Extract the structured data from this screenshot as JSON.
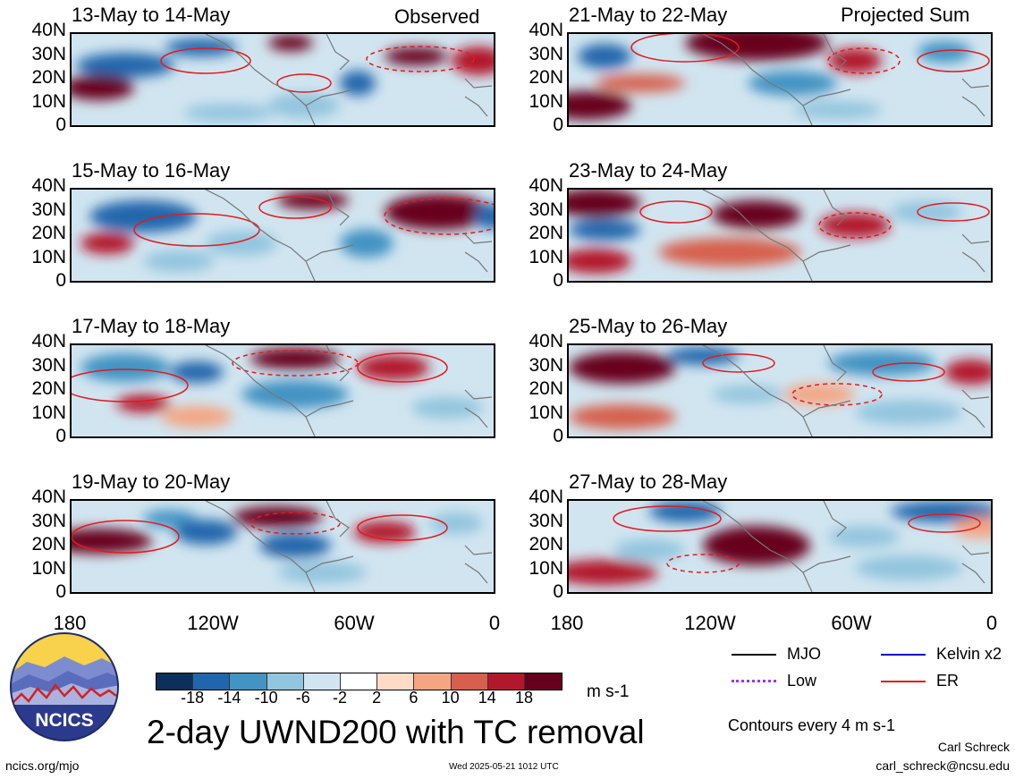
{
  "header": {
    "observed_label": "Observed",
    "projected_label": "Projected Sum"
  },
  "panels_observed": [
    {
      "title": "13-May to 14-May"
    },
    {
      "title": "15-May to 16-May"
    },
    {
      "title": "17-May to 18-May"
    },
    {
      "title": "19-May to 20-May"
    }
  ],
  "panels_projected": [
    {
      "title": "21-May to 22-May"
    },
    {
      "title": "23-May to 24-May"
    },
    {
      "title": "25-May to 26-May"
    },
    {
      "title": "27-May to 28-May"
    }
  ],
  "axes": {
    "lat_ticks": [
      "40N",
      "30N",
      "20N",
      "10N",
      "0"
    ],
    "lon_ticks": [
      "180",
      "120W",
      "60W",
      "0"
    ]
  },
  "colorbar": {
    "ticks": [
      "-18",
      "-14",
      "-10",
      "-6",
      "-2",
      "2",
      "6",
      "10",
      "14",
      "18"
    ],
    "unit": "m s-1",
    "colors": [
      "#0c2f5c",
      "#2166ac",
      "#4393c3",
      "#92c5de",
      "#d1e5f0",
      "#ffffff",
      "#fddbc7",
      "#f4a582",
      "#d6604d",
      "#b2182b",
      "#67001f"
    ]
  },
  "legend": {
    "mjo": "MJO",
    "kelvin": "Kelvin x2",
    "low": "Low",
    "er": "ER",
    "contours_note": "Contours every 4 m s-1",
    "colors": {
      "mjo": "#000000",
      "kelvin": "#0000cc",
      "low": "#9933ff",
      "er": "#e41a1c"
    }
  },
  "footer": {
    "main_title": "2-day UWND200 with TC removal",
    "url": "ncics.org/mjo",
    "timestamp": "Wed 2025-05-21 1012 UTC",
    "author": "Carl Schreck",
    "email": "carl_schreck@ncsu.edu",
    "logo_text": "NCICS"
  },
  "chart_data": [
    {
      "type": "heatmap",
      "title": "13-May to 14-May",
      "group": "Observed",
      "x_range": [
        "180",
        "0"
      ],
      "y_range": [
        "0",
        "40N"
      ],
      "colorbar_unit": "m s-1"
    },
    {
      "type": "heatmap",
      "title": "15-May to 16-May",
      "group": "Observed",
      "x_range": [
        "180",
        "0"
      ],
      "y_range": [
        "0",
        "40N"
      ],
      "colorbar_unit": "m s-1"
    },
    {
      "type": "heatmap",
      "title": "17-May to 18-May",
      "group": "Observed",
      "x_range": [
        "180",
        "0"
      ],
      "y_range": [
        "0",
        "40N"
      ],
      "colorbar_unit": "m s-1"
    },
    {
      "type": "heatmap",
      "title": "19-May to 20-May",
      "group": "Observed",
      "x_range": [
        "180",
        "0"
      ],
      "y_range": [
        "0",
        "40N"
      ],
      "colorbar_unit": "m s-1"
    },
    {
      "type": "heatmap",
      "title": "21-May to 22-May",
      "group": "Projected Sum",
      "x_range": [
        "180",
        "0"
      ],
      "y_range": [
        "0",
        "40N"
      ],
      "colorbar_unit": "m s-1"
    },
    {
      "type": "heatmap",
      "title": "23-May to 24-May",
      "group": "Projected Sum",
      "x_range": [
        "180",
        "0"
      ],
      "y_range": [
        "0",
        "40N"
      ],
      "colorbar_unit": "m s-1"
    },
    {
      "type": "heatmap",
      "title": "25-May to 26-May",
      "group": "Projected Sum",
      "x_range": [
        "180",
        "0"
      ],
      "y_range": [
        "0",
        "40N"
      ],
      "colorbar_unit": "m s-1"
    },
    {
      "type": "heatmap",
      "title": "27-May to 28-May",
      "group": "Projected Sum",
      "x_range": [
        "180",
        "0"
      ],
      "y_range": [
        "0",
        "40N"
      ],
      "colorbar_unit": "m s-1"
    }
  ]
}
